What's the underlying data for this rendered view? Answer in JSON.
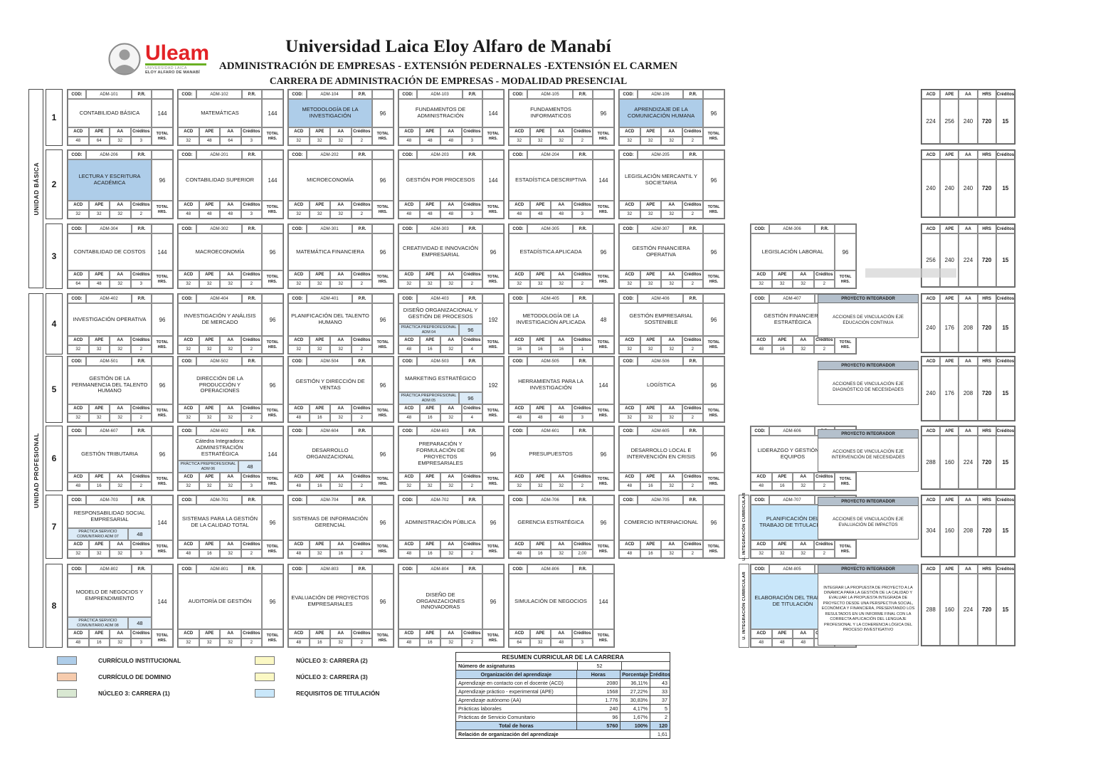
{
  "header": {
    "university": "Universidad Laica Eloy Alfaro de Manabí",
    "subtitle1": "ADMINISTRACIÓN DE EMPRESAS - EXTENSIÓN PEDERNALES -EXTENSIÓN EL CARMEN",
    "subtitle2": "CARRERA DE ADMINISTRACIÓN DE EMPRESAS - MODALIDAD PRESENCIAL",
    "logo": {
      "brand": "Uleam",
      "line1": "UNIVERSIDAD LAICA",
      "line2": "ELOY ALFARO DE MANABÍ"
    }
  },
  "labels": {
    "cod": "COD:",
    "pr": "P.R.",
    "acd": "ACD",
    "ape": "APE",
    "aa": "AA",
    "creditos": "Créditos",
    "total_hrs": "TOTAL HRS.",
    "hrs": "HRS",
    "proyecto": "PROYECTO INTEGRADOR",
    "rail": "U. INTEGRACIÓN CURRICULAR"
  },
  "units": [
    {
      "label": "UNIDAD BÁSICA"
    },
    {
      "label": "UNIDAD PROFESIONAL"
    }
  ],
  "semesters": [
    {
      "number": "1",
      "courses": [
        {
          "cod": "ADM-101",
          "name": "CONTABILIDAD BÁSICA",
          "hours": "144",
          "acd": "48",
          "ape": "64",
          "aa": "32",
          "creditos": "3"
        },
        {
          "cod": "ADM-102",
          "name": "MATEMÁTICAS",
          "hours": "144",
          "acd": "32",
          "ape": "48",
          "aa": "64",
          "creditos": "3"
        },
        {
          "cod": "ADM-104",
          "name": "METODOLOGÍA DE LA INVESTIGACIÓN",
          "hours": "96",
          "acd": "32",
          "ape": "32",
          "aa": "32",
          "creditos": "2",
          "highlight": "inst"
        },
        {
          "cod": "ADM-103",
          "name": "FUNDAMENTOS DE ADMINISTRACIÓN",
          "hours": "144",
          "acd": "48",
          "ape": "48",
          "aa": "48",
          "creditos": "3"
        },
        {
          "cod": "ADM-105",
          "name": "FUNDAMENTOS INFORMATICOS",
          "hours": "96",
          "acd": "32",
          "ape": "32",
          "aa": "32",
          "creditos": "2"
        },
        {
          "cod": "ADM-106",
          "name": "APRENDIZAJE DE LA COMUNICACIÓN HUMANA",
          "hours": "96",
          "acd": "32",
          "ape": "32",
          "aa": "32",
          "creditos": "2",
          "highlight": "inst"
        }
      ],
      "totals": {
        "acd": "224",
        "ape": "256",
        "aa": "240",
        "hrs": "720",
        "creditos": "15"
      }
    },
    {
      "number": "2",
      "courses": [
        {
          "cod": "ADM-206",
          "name": "LECTURA Y ESCRITURA ACADÉMICA",
          "hours": "96",
          "acd": "32",
          "ape": "32",
          "aa": "32",
          "creditos": "2",
          "highlight": "inst"
        },
        {
          "cod": "ADM-201",
          "name": "CONTABILIDAD SUPERIOR",
          "hours": "144",
          "acd": "48",
          "ape": "48",
          "aa": "48",
          "creditos": "3"
        },
        {
          "cod": "ADM-202",
          "name": "MICROECONOMÍA",
          "hours": "96",
          "acd": "32",
          "ape": "32",
          "aa": "32",
          "creditos": "2"
        },
        {
          "cod": "ADM-203",
          "name": "GESTIÓN POR PROCESOS",
          "hours": "144",
          "acd": "48",
          "ape": "48",
          "aa": "48",
          "creditos": "3"
        },
        {
          "cod": "ADM-204",
          "name": "ESTADÍSTICA DESCRIPTIVA",
          "hours": "144",
          "acd": "48",
          "ape": "48",
          "aa": "48",
          "creditos": "3"
        },
        {
          "cod": "ADM-205",
          "name": "LEGISLACIÓN MERCANTIL Y SOCIETARIA",
          "hours": "96",
          "acd": "32",
          "ape": "32",
          "aa": "32",
          "creditos": "2"
        }
      ],
      "totals": {
        "acd": "240",
        "ape": "240",
        "aa": "240",
        "hrs": "720",
        "creditos": "15"
      }
    },
    {
      "number": "3",
      "courses": [
        {
          "cod": "ADM-304",
          "name": "CONTABILIDAD DE COSTOS",
          "hours": "144",
          "acd": "64",
          "ape": "48",
          "aa": "32",
          "creditos": "3"
        },
        {
          "cod": "ADM-302",
          "name": "MACROECONOMÍA",
          "hours": "96",
          "acd": "32",
          "ape": "32",
          "aa": "32",
          "creditos": "2"
        },
        {
          "cod": "ADM-301",
          "name": "MATEMÁTICA FINANCIERA",
          "hours": "96",
          "acd": "32",
          "ape": "32",
          "aa": "32",
          "creditos": "2"
        },
        {
          "cod": "ADM-303",
          "name": "CREATIVIDAD E INNOVACIÓN EMPRESARIAL",
          "hours": "96",
          "acd": "32",
          "ape": "32",
          "aa": "32",
          "creditos": "2"
        },
        {
          "cod": "ADM-305",
          "name": "ESTADÍSTICA APLICADA",
          "hours": "96",
          "acd": "32",
          "ape": "32",
          "aa": "32",
          "creditos": "2"
        },
        {
          "cod": "ADM-307",
          "name": "GESTIÓN FINANCIERA OPERATIVA",
          "hours": "96",
          "acd": "32",
          "ape": "32",
          "aa": "32",
          "creditos": "2"
        },
        {
          "cod": "ADM-306",
          "name": "LEGISLACIÓN LABORAL",
          "hours": "96",
          "acd": "32",
          "ape": "32",
          "aa": "32",
          "creditos": "2",
          "offset_right": true
        }
      ],
      "totals": {
        "acd": "256",
        "ape": "240",
        "aa": "224",
        "hrs": "720",
        "creditos": "15"
      }
    },
    {
      "number": "4",
      "courses": [
        {
          "cod": "ADM-402",
          "name": "INVESTIGACIÓN OPERATIVA",
          "hours": "96",
          "acd": "32",
          "ape": "32",
          "aa": "32",
          "creditos": "2"
        },
        {
          "cod": "ADM-404",
          "name": "INVESTIGACIÓN Y ANÁLISIS DE MERCADO",
          "hours": "96",
          "acd": "32",
          "ape": "32",
          "aa": "32",
          "creditos": "2"
        },
        {
          "cod": "ADM-401",
          "name": "PLANIFICACIÓN DEL TALENTO HUMANO",
          "hours": "96",
          "acd": "32",
          "ape": "32",
          "aa": "32",
          "creditos": "2"
        },
        {
          "cod": "ADM-403",
          "name": "DISEÑO ORGANIZACIONAL Y GESTIÓN DE PROCESOS",
          "hours": "192",
          "acd": "48",
          "ape": "16",
          "aa": "32",
          "creditos": "4",
          "sub": {
            "label": "PRÁCTICA PREPROFESIONAL ADM 04",
            "hours": "96"
          }
        },
        {
          "cod": "ADM-405",
          "name": "METODOLOGÍA DE LA INVESTIGACIÓN APLICADA",
          "hours": "48",
          "acd": "16",
          "ape": "16",
          "aa": "16",
          "creditos": "1"
        },
        {
          "cod": "ADM-406",
          "name": "GESTIÓN EMPRESARIAL SOSTENIBLE",
          "hours": "96",
          "acd": "32",
          "ape": "32",
          "aa": "32",
          "creditos": "2"
        },
        {
          "cod": "ADM-407",
          "name": "GESTIÓN FINANCIERA ESTRATÉGICA",
          "hours": "96",
          "acd": "48",
          "ape": "16",
          "aa": "32",
          "creditos": "2",
          "offset_right": true
        }
      ],
      "proyecto": "ACCIONES DE VINCULACIÓN EJE EDUCACIÓN CONTINUA",
      "totals": {
        "acd": "240",
        "ape": "176",
        "aa": "208",
        "hrs": "720",
        "creditos": "15"
      }
    },
    {
      "number": "5",
      "courses": [
        {
          "cod": "ADM-501",
          "name": "GESTIÓN DE LA PERMANENCIA DEL TALENTO HUMANO",
          "hours": "96",
          "acd": "32",
          "ape": "32",
          "aa": "32",
          "creditos": "2"
        },
        {
          "cod": "ADM-502",
          "name": "DIRECCIÓN DE LA PRODUCCIÓN Y OPERACIONES",
          "hours": "96",
          "acd": "32",
          "ape": "32",
          "aa": "32",
          "creditos": "2"
        },
        {
          "cod": "ADM-504",
          "name": "GESTIÓN Y DIRECCIÓN DE VENTAS",
          "hours": "96",
          "acd": "48",
          "ape": "16",
          "aa": "32",
          "creditos": "2"
        },
        {
          "cod": "ADM-503",
          "name": "MARKETING ESTRATÉGICO",
          "hours": "192",
          "acd": "48",
          "ape": "16",
          "aa": "32",
          "creditos": "4",
          "sub": {
            "label": "PRÁCTICA PREPROFESIONAL ADM 05",
            "hours": "96"
          }
        },
        {
          "cod": "ADM-505",
          "name": "HERRAMIENTAS PARA LA INVESTIGACIÓN",
          "hours": "144",
          "acd": "48",
          "ape": "48",
          "aa": "48",
          "creditos": "3"
        },
        {
          "cod": "ADM-506",
          "name": "LOGÍSTICA",
          "hours": "96",
          "acd": "32",
          "ape": "32",
          "aa": "32",
          "creditos": "2"
        }
      ],
      "proyecto": "ACCIONES DE VINCULACIÓN EJE DIAGNÓSTICO DE NECESIDADES",
      "totals": {
        "acd": "240",
        "ape": "176",
        "aa": "208",
        "hrs": "720",
        "creditos": "15"
      }
    },
    {
      "number": "6",
      "courses": [
        {
          "cod": "ADM-607",
          "name": "GESTIÓN TRIBUTARIA",
          "hours": "96",
          "acd": "48",
          "ape": "16",
          "aa": "32",
          "creditos": "2"
        },
        {
          "cod": "ADM-602",
          "name": "Cátedra Integradora:\nADMINISTRACIÓN ESTRATÉGICA",
          "hours": "144",
          "acd": "32",
          "ape": "32",
          "aa": "32",
          "creditos": "3",
          "sub": {
            "label": "PRÁCTICA PREPROFESIONAL ADM 06",
            "hours": "48"
          }
        },
        {
          "cod": "ADM-604",
          "name": "DESARROLLO ORGANIZACIONAL",
          "hours": "96",
          "acd": "48",
          "ape": "16",
          "aa": "32",
          "creditos": "2"
        },
        {
          "cod": "ADM-603",
          "name": "PREPARACIÓN Y FORMULACIÓN DE PROYECTOS EMPRESARIALES",
          "hours": "96",
          "acd": "32",
          "ape": "32",
          "aa": "32",
          "creditos": "2"
        },
        {
          "cod": "ADM-601",
          "name": "PRESUPUESTOS",
          "hours": "96",
          "acd": "32",
          "ape": "32",
          "aa": "32",
          "creditos": "2"
        },
        {
          "cod": "ADM-605",
          "name": "DESARROLLO LOCAL E INTERVENCIÓN EN CRISIS",
          "hours": "96",
          "acd": "48",
          "ape": "16",
          "aa": "32",
          "creditos": "2"
        },
        {
          "cod": "ADM-606",
          "name": "LIDERAZGO Y GESTIÓN DE EQUIPOS",
          "hours": "96",
          "acd": "48",
          "ape": "16",
          "aa": "32",
          "creditos": "2",
          "offset_right": true
        }
      ],
      "proyecto": "ACCIONES DE VINCULACIÓN EJE INTERVENCIÓN DE NECESIDADES",
      "totals": {
        "acd": "288",
        "ape": "160",
        "aa": "224",
        "hrs": "720",
        "creditos": "15"
      }
    },
    {
      "number": "7",
      "courses": [
        {
          "cod": "ADM-703",
          "name": "RESPONSABILIDAD SOCIAL EMPRESARIAL",
          "hours": "144",
          "acd": "32",
          "ape": "32",
          "aa": "32",
          "creditos": "3",
          "sub": {
            "label": "PRÁCTICA SERVICIO COMUNITARIO ADM 07",
            "hours": "48"
          }
        },
        {
          "cod": "ADM-701",
          "name": "SISTEMAS PARA LA GESTIÓN DE LA CALIDAD TOTAL",
          "hours": "96",
          "acd": "48",
          "ape": "16",
          "aa": "32",
          "creditos": "2"
        },
        {
          "cod": "ADM-704",
          "name": "SISTEMAS DE INFORMACIÓN GERENCIAL",
          "hours": "96",
          "acd": "48",
          "ape": "32",
          "aa": "16",
          "creditos": "2"
        },
        {
          "cod": "ADM-702",
          "name": "ADMINISTRACIÓN PÚBLICA",
          "hours": "96",
          "acd": "48",
          "ape": "16",
          "aa": "32",
          "creditos": "2"
        },
        {
          "cod": "ADM-706",
          "name": "GERENCIA ESTRATÉGICA",
          "hours": "96",
          "acd": "48",
          "ape": "16",
          "aa": "32",
          "creditos": "2,00"
        },
        {
          "cod": "ADM-705",
          "name": "COMERCIO INTERNACIONAL",
          "hours": "96",
          "acd": "48",
          "ape": "16",
          "aa": "32",
          "creditos": "2"
        },
        {
          "cod": "ADM-707",
          "name": "PLANIFICACIÓN DEL TRABAJO DE TITULACIÓN",
          "hours": "96",
          "acd": "32",
          "ape": "32",
          "aa": "32",
          "creditos": "2",
          "highlight": "tit",
          "rail": true,
          "offset_right": true
        }
      ],
      "proyecto": "ACCIONES DE VINCULACIÓN EJE EVALUACIÓN DE IMPACTOS",
      "totals": {
        "acd": "304",
        "ape": "160",
        "aa": "208",
        "hrs": "720",
        "creditos": "15"
      }
    },
    {
      "number": "8",
      "courses": [
        {
          "cod": "ADM-802",
          "name": "MODELO DE NEGOCIOS Y EMPRENDIMIENTO",
          "hours": "144",
          "acd": "48",
          "ape": "16",
          "aa": "32",
          "creditos": "3",
          "sub": {
            "label": "PRÁCTICA SERVICIO COMUNITARIO ADM 08",
            "hours": "48"
          }
        },
        {
          "cod": "ADM-801",
          "name": "AUDITORÍA DE GESTIÓN",
          "hours": "96",
          "acd": "32",
          "ape": "32",
          "aa": "32",
          "creditos": "2"
        },
        {
          "cod": "ADM-803",
          "name": "EVALUACIÓN DE PROYECTOS EMPRESARIALES",
          "hours": "96",
          "acd": "48",
          "ape": "16",
          "aa": "32",
          "creditos": "2"
        },
        {
          "cod": "ADM-804",
          "name": "DISEÑO DE ORGANIZACIONES INNOVADORAS",
          "hours": "96",
          "acd": "48",
          "ape": "16",
          "aa": "32",
          "creditos": "2"
        },
        {
          "cod": "ADM-806",
          "name": "SIMULACIÓN DE NEGOCIOS",
          "hours": "144",
          "acd": "64",
          "ape": "32",
          "aa": "48",
          "creditos": "3"
        },
        {
          "cod": "ADM-805",
          "name": "ELABORACIÓN DEL TRABAJO DE TITULACIÓN",
          "hours": "144",
          "acd": "48",
          "ape": "48",
          "aa": "48",
          "creditos": "3",
          "highlight": "tit",
          "rail": true,
          "offset_right": true
        }
      ],
      "proyecto": "INTEGRAR LA PROPUESTA DE PROYECTO A LA DINÁMICA PARA LA GESTIÓN DE LA CALIDAD Y EVALUAR LA PROPUESTA INTEGRADA DE PROYECTO DESDE UNA PERSPECTIVA SOCIAL, ECONÓMICA Y FINANCIERA, PRESENTANDO LOS RESULTADOS EN UN INFORME FINAL CON LA CORRECTA APLICACIÓN DEL LENGUAJE PROFESIONAL Y LA COHERENCIA LÓGICA DEL PROCESO INVESTIGATIVO",
      "proyecto_long": true,
      "totals": {
        "acd": "288",
        "ape": "160",
        "aa": "224",
        "hrs": "720",
        "creditos": "15"
      }
    }
  ],
  "legend": [
    {
      "label": "CURRÍCULO INSTITUCIONAL",
      "color": "#aecde9"
    },
    {
      "label": "CURRÍCULO DE DOMINIO",
      "color": "#f6cbad"
    },
    {
      "label": "NÚCLEO 3: CARRERA (1)",
      "color": "#d9e8d2"
    },
    {
      "label": "NÚCLEO 3: CARRERA (2)",
      "color": "#fbf8c4"
    },
    {
      "label": "NÚCLEO 3: CARRERA (3)",
      "color": "#fbf8c4"
    },
    {
      "label": "REQUISITOS DE TITULACIÓN",
      "color": "#c9e7fa"
    }
  ],
  "summary": {
    "title": "RESUMEN CURRICULAR DE LA CARRERA",
    "asignaturas_label": "Número de asignaturas",
    "asignaturas_value": "52",
    "col_headers": [
      "Organización del aprendizaje",
      "Horas",
      "Porcentaje",
      "Créditos"
    ],
    "rows": [
      {
        "label": "Aprendizaje en contacto con el docente (ACD)",
        "horas": "2080",
        "pct": "36,11%",
        "cred": "43"
      },
      {
        "label": "Aprendizaje práctico - experimental (APE)",
        "horas": "1568",
        "pct": "27,22%",
        "cred": "33"
      },
      {
        "label": "Aprendizaje autónomo (AA)",
        "horas": "1.776",
        "pct": "30,83%",
        "cred": "37"
      },
      {
        "label": "Prácticas laborales",
        "horas": "240",
        "pct": "4,17%",
        "cred": "5"
      },
      {
        "label": "Prácticas de Servicio Comunitario",
        "horas": "96",
        "pct": "1,67%",
        "cred": "2"
      }
    ],
    "total": {
      "label": "Total de horas",
      "horas": "5760",
      "pct": "100%",
      "cred": "120"
    },
    "relacion": {
      "label": "Relación de organización del aprendizaje",
      "value": "1,61"
    }
  }
}
